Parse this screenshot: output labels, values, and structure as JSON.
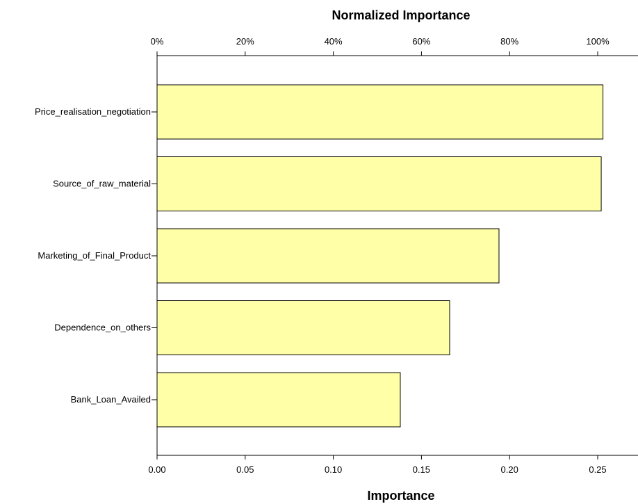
{
  "chart_data": {
    "type": "bar",
    "orientation": "horizontal",
    "categories": [
      "Price_realisation_negotiation",
      "Source_of_raw_material",
      "Marketing_of_Final_Product",
      "Dependence_on_others",
      "Bank_Loan_Availed"
    ],
    "values": [
      0.253,
      0.252,
      0.194,
      0.166,
      0.138
    ],
    "bottom_axis": {
      "label": "Importance",
      "lim": [
        0,
        0.277
      ],
      "ticks": [
        0.0,
        0.05,
        0.1,
        0.15,
        0.2,
        0.25
      ],
      "tick_labels": [
        "0.00",
        "0.05",
        "0.10",
        "0.15",
        "0.20",
        "0.25"
      ]
    },
    "top_axis": {
      "label": "Normalized Importance",
      "ticks": [
        0,
        20,
        40,
        60,
        80,
        100
      ],
      "tick_labels": [
        "0%",
        "20%",
        "40%",
        "60%",
        "80%",
        "100%"
      ]
    },
    "grid": false,
    "legend": "none",
    "colors": {
      "bar_fill": "#ffffa8",
      "bar_stroke": "#000000"
    }
  }
}
